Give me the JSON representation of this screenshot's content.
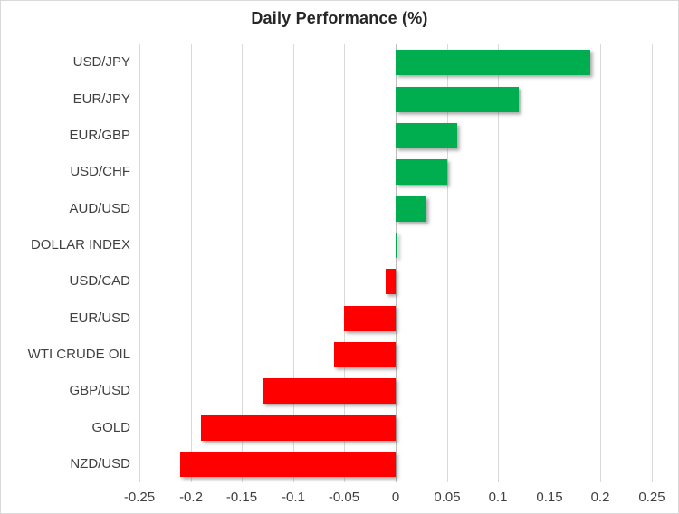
{
  "chart_data": {
    "type": "bar",
    "orientation": "horizontal",
    "title": "Daily Performance (%)",
    "categories": [
      "USD/JPY",
      "EUR/JPY",
      "EUR/GBP",
      "USD/CHF",
      "AUD/USD",
      "DOLLAR INDEX",
      "USD/CAD",
      "EUR/USD",
      "WTI CRUDE OIL",
      "GBP/USD",
      "GOLD",
      "NZD/USD"
    ],
    "values": [
      0.19,
      0.12,
      0.06,
      0.05,
      0.03,
      0.002,
      -0.01,
      -0.05,
      -0.06,
      -0.13,
      -0.19,
      -0.21
    ],
    "xlim": [
      -0.25,
      0.25
    ],
    "x_ticks": [
      -0.25,
      -0.2,
      -0.15,
      -0.1,
      -0.05,
      0,
      0.05,
      0.1,
      0.15,
      0.2,
      0.25
    ],
    "x_tick_labels": [
      "-0.25",
      "-0.2",
      "-0.15",
      "-0.1",
      "-0.05",
      "0",
      "0.05",
      "0.1",
      "0.15",
      "0.2",
      "0.25"
    ],
    "grid": true,
    "legend": "none",
    "colors": {
      "positive": "#00ae50",
      "negative": "#ff0000",
      "gridline": "#d9d9d9",
      "axis_line": "#bfbfbf",
      "text": "#404040",
      "title_text": "#262626"
    }
  }
}
